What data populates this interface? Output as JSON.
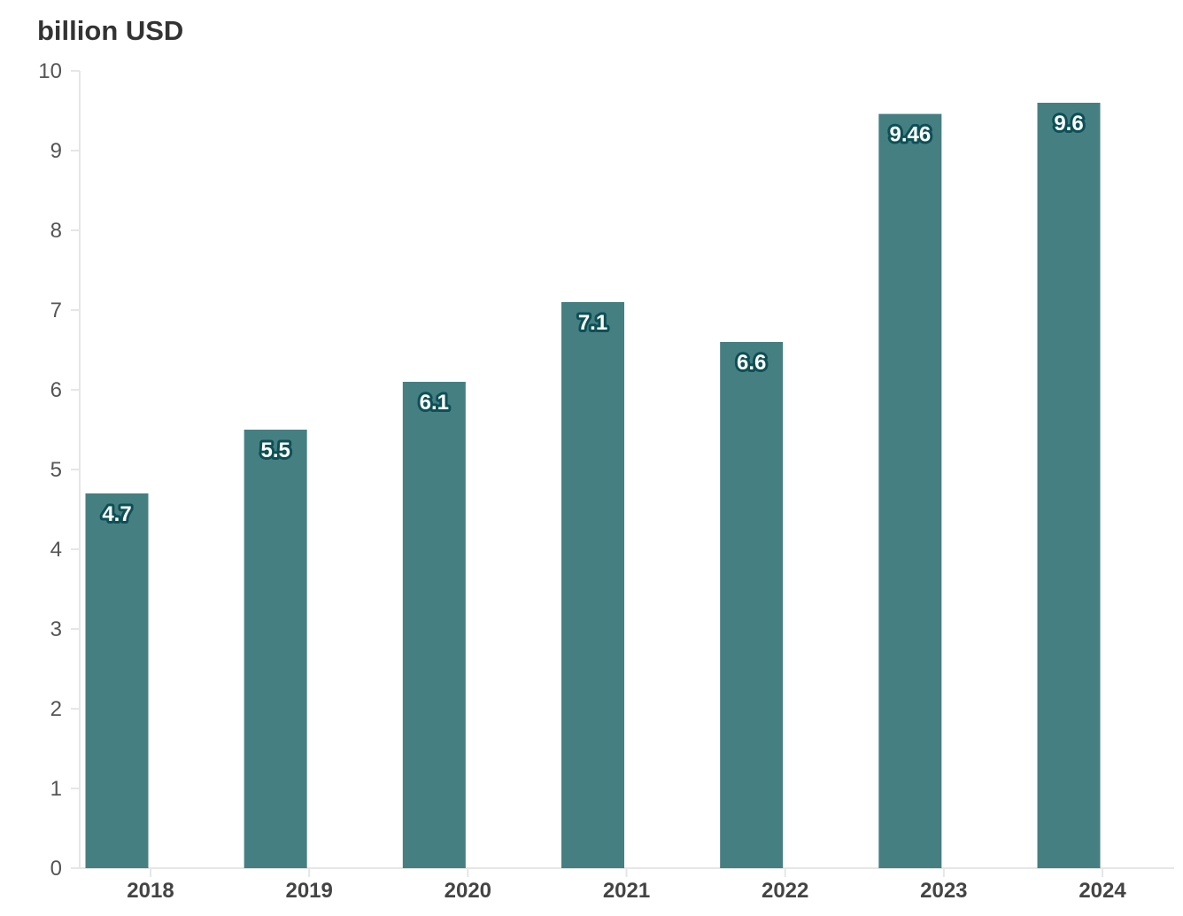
{
  "chart_data": {
    "type": "bar",
    "unit_label": "billion USD",
    "categories": [
      "2018",
      "2019",
      "2020",
      "2021",
      "2022",
      "2023",
      "2024"
    ],
    "values": [
      4.7,
      5.5,
      6.1,
      7.1,
      6.6,
      9.46,
      9.6
    ],
    "value_labels": [
      "4.7",
      "5.5",
      "6.1",
      "7.1",
      "6.6",
      "9.46",
      "9.6"
    ],
    "ylim": [
      0,
      10
    ],
    "yticks": [
      0,
      1,
      2,
      3,
      4,
      5,
      6,
      7,
      8,
      9,
      10
    ],
    "grid": false,
    "colors": {
      "bar": "#467f82",
      "label_outline": "#0c5055"
    }
  }
}
